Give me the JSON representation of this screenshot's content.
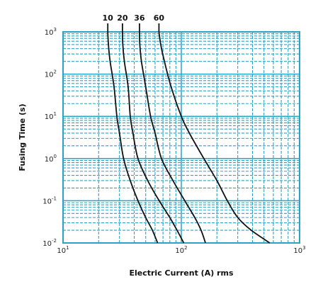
{
  "chart_data": {
    "type": "line",
    "xlabel": "Electric Current (A) rms",
    "ylabel": "Fusing Time (s)",
    "xscale": "log",
    "yscale": "log",
    "xlim": [
      10,
      1000
    ],
    "ylim": [
      0.01,
      1000
    ],
    "grid": true,
    "x_ticks": [
      {
        "base": "10",
        "exp": "1"
      },
      {
        "base": "10",
        "exp": "2"
      },
      {
        "base": "10",
        "exp": "3"
      }
    ],
    "y_ticks": [
      {
        "base": "10",
        "exp": "3"
      },
      {
        "base": "10",
        "exp": "2"
      },
      {
        "base": "10",
        "exp": "1"
      },
      {
        "base": "10",
        "exp": "0"
      },
      {
        "base": "10",
        "exp": "-1"
      },
      {
        "base": "10",
        "exp": "-2"
      }
    ],
    "series": [
      {
        "name": "10",
        "points": [
          [
            23.9,
            1000
          ],
          [
            24.2,
            500
          ],
          [
            25,
            200
          ],
          [
            27,
            50
          ],
          [
            28.5,
            10
          ],
          [
            30,
            4
          ],
          [
            32.5,
            1
          ],
          [
            37,
            0.3
          ],
          [
            43,
            0.1
          ],
          [
            50,
            0.04
          ],
          [
            57,
            0.02
          ],
          [
            63,
            0.01
          ]
        ]
      },
      {
        "name": "20",
        "points": [
          [
            31.8,
            1000
          ],
          [
            32,
            500
          ],
          [
            33,
            200
          ],
          [
            35.5,
            50
          ],
          [
            37,
            10
          ],
          [
            39,
            4
          ],
          [
            43,
            1
          ],
          [
            52,
            0.3
          ],
          [
            65,
            0.1
          ],
          [
            80,
            0.04
          ],
          [
            92,
            0.02
          ],
          [
            105,
            0.01
          ]
        ]
      },
      {
        "name": "36",
        "points": [
          [
            44.3,
            1000
          ],
          [
            44.6,
            500
          ],
          [
            46,
            200
          ],
          [
            50,
            50
          ],
          [
            55,
            10
          ],
          [
            60,
            4
          ],
          [
            68,
            1
          ],
          [
            85,
            0.3
          ],
          [
            107,
            0.1
          ],
          [
            130,
            0.04
          ],
          [
            147,
            0.02
          ],
          [
            160,
            0.01
          ]
        ]
      },
      {
        "name": "60",
        "points": [
          [
            64.7,
            1000
          ],
          [
            67,
            500
          ],
          [
            72,
            200
          ],
          [
            82,
            50
          ],
          [
            100,
            10
          ],
          [
            117,
            4
          ],
          [
            155,
            1
          ],
          [
            200,
            0.3
          ],
          [
            245,
            0.1
          ],
          [
            300,
            0.04
          ],
          [
            390,
            0.02
          ],
          [
            560,
            0.01
          ]
        ]
      }
    ],
    "colors": {
      "grid": "#2aa4c6",
      "background": "#ffffff",
      "line": "#111111"
    }
  }
}
